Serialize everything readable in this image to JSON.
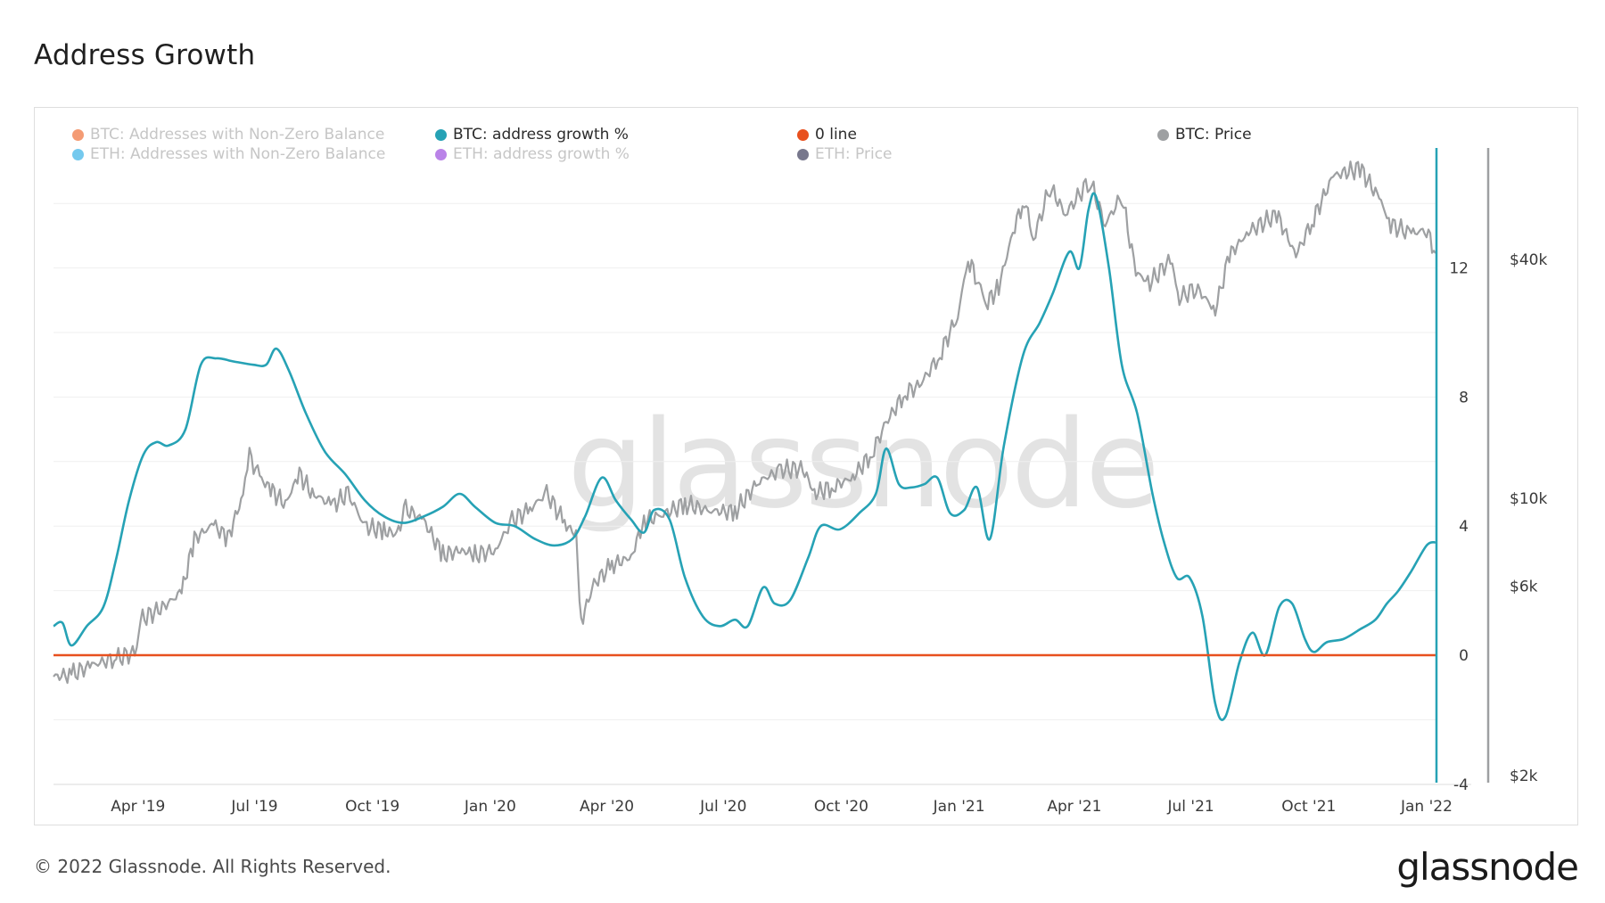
{
  "page": {
    "title": "Address Growth",
    "footer": "© 2022 Glassnode. All Rights Reserved.",
    "logo": "glassnode",
    "watermark": "glassnode"
  },
  "legend": [
    {
      "label": "BTC: Addresses with Non-Zero Balance",
      "color": "#f07a46",
      "active": false
    },
    {
      "label": "BTC: address growth %",
      "color": "#26a2b5",
      "active": true
    },
    {
      "label": "0 line",
      "color": "#e8501e",
      "active": true
    },
    {
      "label": "BTC: Price",
      "color": "#9ea0a2",
      "active": true
    },
    {
      "label": "ETH: Addresses with Non-Zero Balance",
      "color": "#45b7e8",
      "active": false
    },
    {
      "label": "ETH: address growth %",
      "color": "#a35ae0",
      "active": false
    },
    {
      "label": "ETH: Price",
      "color": "#4a4a66",
      "active": false
    }
  ],
  "chart_data": {
    "type": "line",
    "title": "Address Growth",
    "x_range": [
      "2019-01-25",
      "2022-01-08"
    ],
    "x_ticks": [
      "Apr '19",
      "Jul '19",
      "Oct '19",
      "Jan '20",
      "Apr '20",
      "Jul '20",
      "Oct '20",
      "Jan '21",
      "Apr '21",
      "Jul '21",
      "Oct '21",
      "Jan '22"
    ],
    "y_left": {
      "ticks": [
        "12",
        "8",
        "4",
        "0",
        "-4"
      ],
      "range": [
        -4,
        16
      ]
    },
    "y_right": {
      "scale": "log",
      "ticks": [
        "$40k",
        "$10k",
        "$6k",
        "$2k"
      ],
      "range": [
        2000,
        70000
      ]
    },
    "grid": true,
    "legend_position": "top",
    "series": [
      {
        "name": "BTC: address growth %",
        "color": "#26a2b5",
        "axis": "left",
        "points": [
          [
            "2019-01-25",
            0.9
          ],
          [
            "2019-02-01",
            1.0
          ],
          [
            "2019-02-08",
            0.3
          ],
          [
            "2019-02-20",
            0.9
          ],
          [
            "2019-03-05",
            1.5
          ],
          [
            "2019-03-15",
            3.0
          ],
          [
            "2019-03-25",
            4.8
          ],
          [
            "2019-04-05",
            6.2
          ],
          [
            "2019-04-15",
            6.6
          ],
          [
            "2019-04-25",
            6.5
          ],
          [
            "2019-05-08",
            7.0
          ],
          [
            "2019-05-20",
            9.0
          ],
          [
            "2019-06-01",
            9.2
          ],
          [
            "2019-06-15",
            9.1
          ],
          [
            "2019-06-30",
            9.0
          ],
          [
            "2019-07-10",
            9.0
          ],
          [
            "2019-07-18",
            9.5
          ],
          [
            "2019-07-28",
            8.8
          ],
          [
            "2019-08-10",
            7.5
          ],
          [
            "2019-08-25",
            6.3
          ],
          [
            "2019-09-10",
            5.6
          ],
          [
            "2019-09-25",
            4.8
          ],
          [
            "2019-10-10",
            4.3
          ],
          [
            "2019-10-25",
            4.1
          ],
          [
            "2019-11-10",
            4.3
          ],
          [
            "2019-11-25",
            4.6
          ],
          [
            "2019-12-08",
            5.0
          ],
          [
            "2019-12-20",
            4.6
          ],
          [
            "2020-01-05",
            4.1
          ],
          [
            "2020-01-20",
            4.0
          ],
          [
            "2020-02-05",
            3.6
          ],
          [
            "2020-02-20",
            3.4
          ],
          [
            "2020-03-05",
            3.6
          ],
          [
            "2020-03-15",
            4.3
          ],
          [
            "2020-03-28",
            5.5
          ],
          [
            "2020-04-08",
            4.8
          ],
          [
            "2020-04-20",
            4.2
          ],
          [
            "2020-04-30",
            3.8
          ],
          [
            "2020-05-08",
            4.5
          ],
          [
            "2020-05-20",
            4.2
          ],
          [
            "2020-06-01",
            2.4
          ],
          [
            "2020-06-15",
            1.2
          ],
          [
            "2020-06-28",
            0.9
          ],
          [
            "2020-07-10",
            1.1
          ],
          [
            "2020-07-20",
            0.9
          ],
          [
            "2020-08-01",
            2.1
          ],
          [
            "2020-08-10",
            1.6
          ],
          [
            "2020-08-22",
            1.7
          ],
          [
            "2020-09-05",
            3.0
          ],
          [
            "2020-09-15",
            4.0
          ],
          [
            "2020-09-30",
            3.9
          ],
          [
            "2020-10-15",
            4.4
          ],
          [
            "2020-10-28",
            5.0
          ],
          [
            "2020-11-05",
            6.4
          ],
          [
            "2020-11-15",
            5.3
          ],
          [
            "2020-11-25",
            5.2
          ],
          [
            "2020-12-05",
            5.3
          ],
          [
            "2020-12-15",
            5.5
          ],
          [
            "2020-12-25",
            4.4
          ],
          [
            "2021-01-05",
            4.5
          ],
          [
            "2021-01-15",
            5.2
          ],
          [
            "2021-01-25",
            3.6
          ],
          [
            "2021-02-05",
            6.5
          ],
          [
            "2021-02-20",
            9.3
          ],
          [
            "2021-03-05",
            10.3
          ],
          [
            "2021-03-15",
            11.2
          ],
          [
            "2021-03-28",
            12.5
          ],
          [
            "2021-04-05",
            12.0
          ],
          [
            "2021-04-12",
            13.8
          ],
          [
            "2021-04-18",
            14.2
          ],
          [
            "2021-04-28",
            12.0
          ],
          [
            "2021-05-08",
            9.0
          ],
          [
            "2021-05-20",
            7.5
          ],
          [
            "2021-06-01",
            5.0
          ],
          [
            "2021-06-10",
            3.5
          ],
          [
            "2021-06-20",
            2.4
          ],
          [
            "2021-06-30",
            2.4
          ],
          [
            "2021-07-10",
            1.2
          ],
          [
            "2021-07-20",
            -1.5
          ],
          [
            "2021-07-28",
            -1.9
          ],
          [
            "2021-08-08",
            -0.2
          ],
          [
            "2021-08-18",
            0.7
          ],
          [
            "2021-08-28",
            0.0
          ],
          [
            "2021-09-08",
            1.5
          ],
          [
            "2021-09-18",
            1.6
          ],
          [
            "2021-09-28",
            0.5
          ],
          [
            "2021-10-05",
            0.1
          ],
          [
            "2021-10-15",
            0.4
          ],
          [
            "2021-10-28",
            0.5
          ],
          [
            "2021-11-10",
            0.8
          ],
          [
            "2021-11-22",
            1.1
          ],
          [
            "2021-12-01",
            1.6
          ],
          [
            "2021-12-10",
            2.0
          ],
          [
            "2021-12-20",
            2.6
          ],
          [
            "2022-01-01",
            3.4
          ],
          [
            "2022-01-08",
            3.5
          ]
        ]
      },
      {
        "name": "0 line",
        "color": "#e8501e",
        "axis": "left",
        "points": [
          [
            "2019-01-25",
            0
          ],
          [
            "2022-01-08",
            0
          ]
        ]
      },
      {
        "name": "BTC: Price",
        "color": "#9ea0a2",
        "axis": "right",
        "points": [
          [
            "2019-01-25",
            3550
          ],
          [
            "2019-02-08",
            3600
          ],
          [
            "2019-02-24",
            3800
          ],
          [
            "2019-03-15",
            3950
          ],
          [
            "2019-03-31",
            4100
          ],
          [
            "2019-04-03",
            4950
          ],
          [
            "2019-04-20",
            5300
          ],
          [
            "2019-05-05",
            5800
          ],
          [
            "2019-05-15",
            7900
          ],
          [
            "2019-05-30",
            8600
          ],
          [
            "2019-06-10",
            7900
          ],
          [
            "2019-06-22",
            10200
          ],
          [
            "2019-06-27",
            12800
          ],
          [
            "2019-07-05",
            11300
          ],
          [
            "2019-07-15",
            10400
          ],
          [
            "2019-07-25",
            9700
          ],
          [
            "2019-08-05",
            11500
          ],
          [
            "2019-08-15",
            10300
          ],
          [
            "2019-08-31",
            9600
          ],
          [
            "2019-09-12",
            10300
          ],
          [
            "2019-09-25",
            8500
          ],
          [
            "2019-10-10",
            8300
          ],
          [
            "2019-10-20",
            8100
          ],
          [
            "2019-10-27",
            9400
          ],
          [
            "2019-11-10",
            8800
          ],
          [
            "2019-11-25",
            7200
          ],
          [
            "2019-12-10",
            7400
          ],
          [
            "2019-12-20",
            7200
          ],
          [
            "2020-01-05",
            7400
          ],
          [
            "2020-01-18",
            8800
          ],
          [
            "2020-02-01",
            9400
          ],
          [
            "2020-02-14",
            10300
          ],
          [
            "2020-02-28",
            8700
          ],
          [
            "2020-03-08",
            8000
          ],
          [
            "2020-03-12",
            4900
          ],
          [
            "2020-03-22",
            6100
          ],
          [
            "2020-04-05",
            6800
          ],
          [
            "2020-04-20",
            7100
          ],
          [
            "2020-04-30",
            8800
          ],
          [
            "2020-05-12",
            9000
          ],
          [
            "2020-06-01",
            9700
          ],
          [
            "2020-06-20",
            9300
          ],
          [
            "2020-07-10",
            9250
          ],
          [
            "2020-07-28",
            11000
          ],
          [
            "2020-08-15",
            11800
          ],
          [
            "2020-09-01",
            11900
          ],
          [
            "2020-09-10",
            10300
          ],
          [
            "2020-09-25",
            10700
          ],
          [
            "2020-10-10",
            11300
          ],
          [
            "2020-10-25",
            13000
          ],
          [
            "2020-11-05",
            15500
          ],
          [
            "2020-11-20",
            18500
          ],
          [
            "2020-12-01",
            19200
          ],
          [
            "2020-12-17",
            23000
          ],
          [
            "2020-12-31",
            29000
          ],
          [
            "2021-01-08",
            40000
          ],
          [
            "2021-01-15",
            36000
          ],
          [
            "2021-01-22",
            31000
          ],
          [
            "2021-02-01",
            34000
          ],
          [
            "2021-02-12",
            47000
          ],
          [
            "2021-02-21",
            57000
          ],
          [
            "2021-02-28",
            45000
          ],
          [
            "2021-03-13",
            61000
          ],
          [
            "2021-03-25",
            52000
          ],
          [
            "2021-04-13",
            63500
          ],
          [
            "2021-04-25",
            49000
          ],
          [
            "2021-05-08",
            58000
          ],
          [
            "2021-05-19",
            37000
          ],
          [
            "2021-05-30",
            35000
          ],
          [
            "2021-06-15",
            40000
          ],
          [
            "2021-06-22",
            32000
          ],
          [
            "2021-07-05",
            34000
          ],
          [
            "2021-07-20",
            29800
          ],
          [
            "2021-07-31",
            41000
          ],
          [
            "2021-08-15",
            47000
          ],
          [
            "2021-09-06",
            52000
          ],
          [
            "2021-09-21",
            41000
          ],
          [
            "2021-10-05",
            51000
          ],
          [
            "2021-10-20",
            65000
          ],
          [
            "2021-11-10",
            68000
          ],
          [
            "2021-11-25",
            57000
          ],
          [
            "2021-12-04",
            49000
          ],
          [
            "2021-12-20",
            46500
          ],
          [
            "2022-01-01",
            47500
          ],
          [
            "2022-01-08",
            41500
          ]
        ]
      }
    ]
  }
}
